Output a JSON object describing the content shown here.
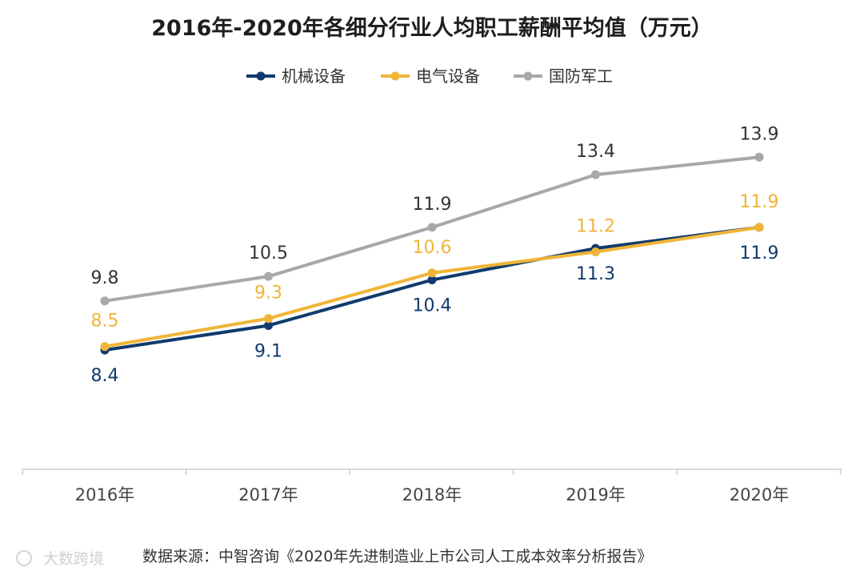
{
  "chart_data": {
    "type": "line",
    "title": "2016年-2020年各细分行业人均职工薪酬平均值（万元）",
    "categories": [
      "2016年",
      "2017年",
      "2018年",
      "2019年",
      "2020年"
    ],
    "series": [
      {
        "name": "机械设备",
        "color": "#0f3a6e",
        "values": [
          8.4,
          9.1,
          10.4,
          11.3,
          11.9
        ]
      },
      {
        "name": "电气设备",
        "color": "#f0b537",
        "values": [
          8.5,
          9.3,
          10.6,
          11.2,
          11.9
        ]
      },
      {
        "name": "国防军工",
        "color": "#a8a8a8",
        "values": [
          9.8,
          10.5,
          11.9,
          13.4,
          13.9
        ]
      }
    ],
    "ylim": [
      5,
      14.5
    ],
    "grid": false,
    "legend_position": "top-center",
    "xlabel": "",
    "ylabel": ""
  },
  "footer": {
    "source": "数据来源：中智咨询《2020年先进制造业上市公司人工成本效率分析报告》",
    "watermark": "大数跨境"
  }
}
